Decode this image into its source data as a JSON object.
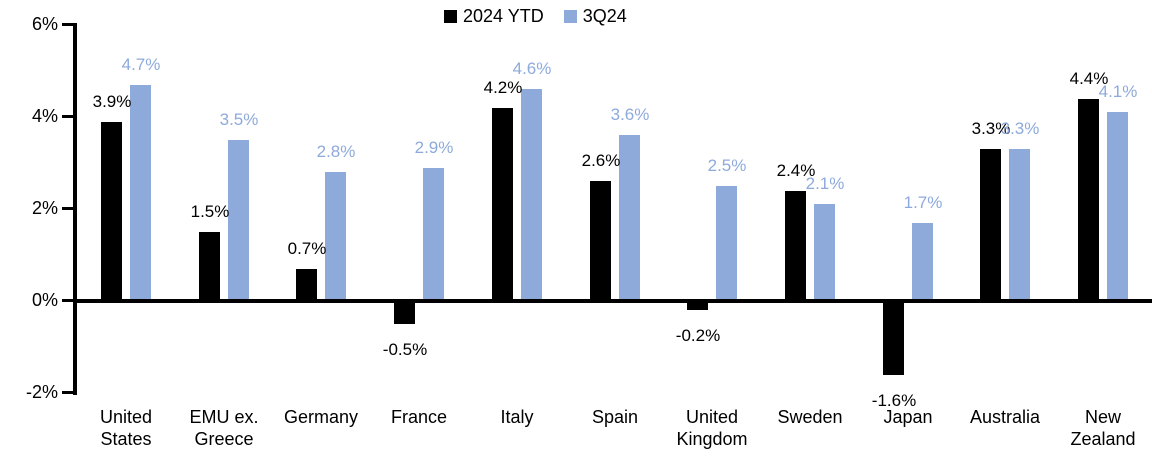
{
  "chart_data": {
    "type": "bar",
    "title": "",
    "categories": [
      "United States",
      "EMU ex. Greece",
      "Germany",
      "France",
      "Italy",
      "Spain",
      "United Kingdom",
      "Sweden",
      "Japan",
      "Australia",
      "New Zealand"
    ],
    "series": [
      {
        "name": "2024 YTD",
        "color": "#000000",
        "values": [
          3.9,
          1.5,
          0.7,
          -0.5,
          4.2,
          2.6,
          -0.2,
          2.4,
          -1.6,
          3.3,
          4.4
        ]
      },
      {
        "name": "3Q24",
        "color": "#8EAADB",
        "values": [
          4.7,
          3.5,
          2.8,
          2.9,
          4.6,
          3.6,
          2.5,
          2.1,
          1.7,
          3.3,
          4.1
        ]
      }
    ],
    "data_labels": {
      "format": "one_decimal_percent",
      "series_label_colors": [
        "#000000",
        "#8EAADB"
      ]
    },
    "y_axis": {
      "min": -2,
      "max": 6,
      "tick_values": [
        6,
        4,
        2,
        0,
        -2
      ],
      "tick_labels": [
        "6%",
        "4%",
        "2%",
        "0%",
        "-2%"
      ]
    },
    "legend_position": "top-center",
    "grid": false,
    "background_color": "#ffffff"
  }
}
